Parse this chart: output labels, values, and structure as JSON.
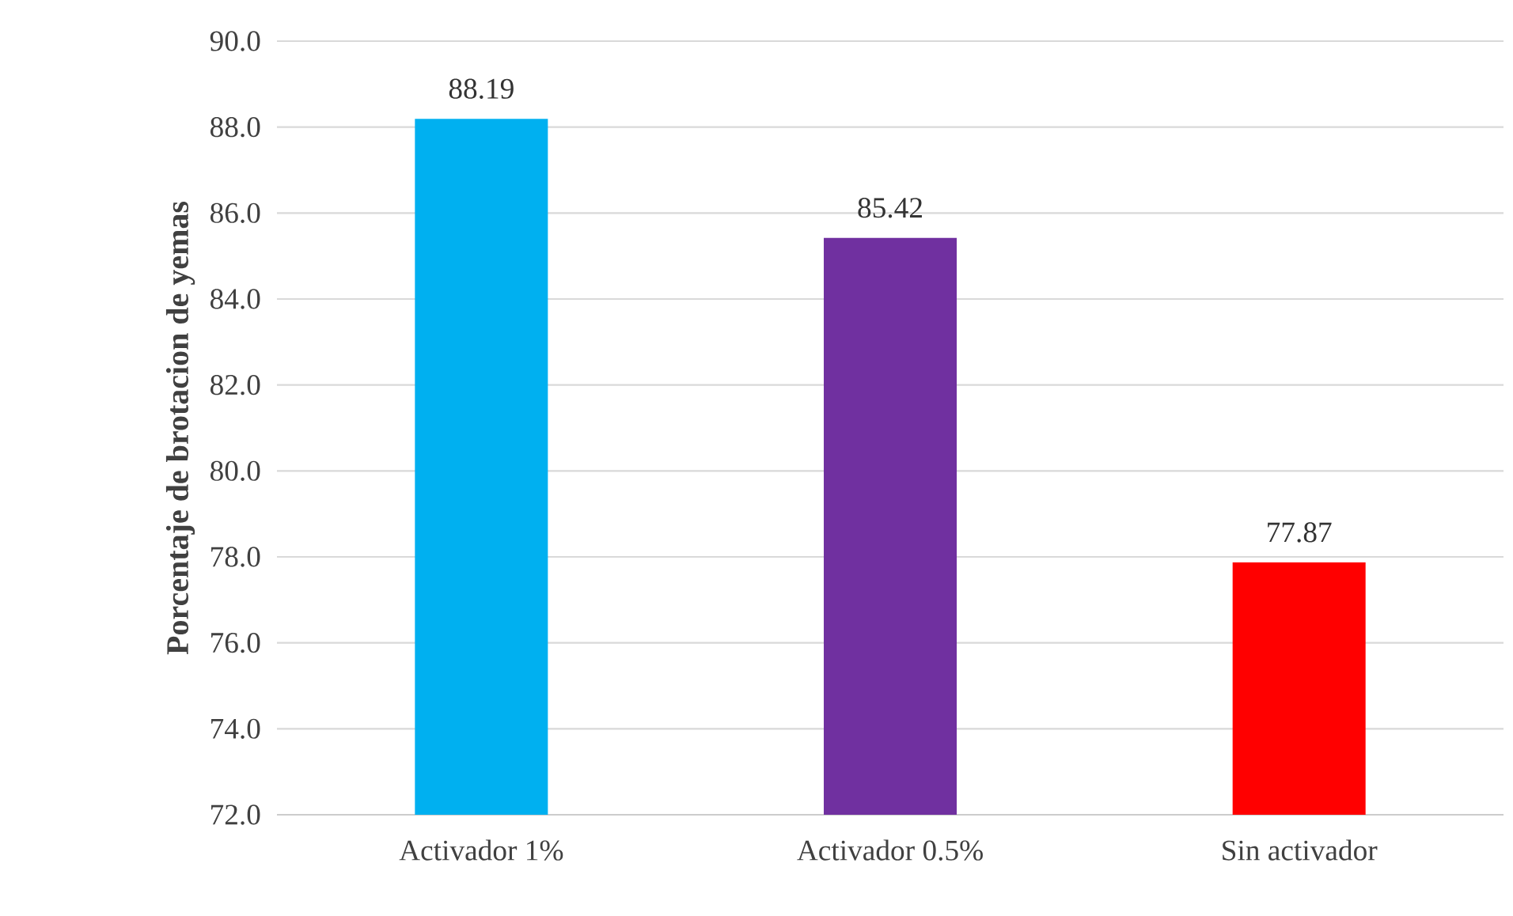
{
  "chart_data": {
    "type": "bar",
    "ylabel": "Porcentaje de brotacion de yemas",
    "categories": [
      "Activador 1%",
      "Activador 0.5%",
      "Sin activador"
    ],
    "values": [
      88.19,
      85.42,
      77.87
    ],
    "colors": [
      "#00b0f0",
      "#7030a0",
      "#ff0000"
    ],
    "ylim": [
      72,
      90
    ],
    "yticks": [
      {
        "value": 72,
        "label": "72.0"
      },
      {
        "value": 74,
        "label": "74.0"
      },
      {
        "value": 76,
        "label": "76.0"
      },
      {
        "value": 78,
        "label": "78.0"
      },
      {
        "value": 80,
        "label": "80.0"
      },
      {
        "value": 82,
        "label": "82.0"
      },
      {
        "value": 84,
        "label": "84.0"
      },
      {
        "value": 86,
        "label": "86.0"
      },
      {
        "value": 88,
        "label": "88.0"
      },
      {
        "value": 90,
        "label": "90.0"
      }
    ],
    "grid": "y",
    "data_labels": true
  }
}
